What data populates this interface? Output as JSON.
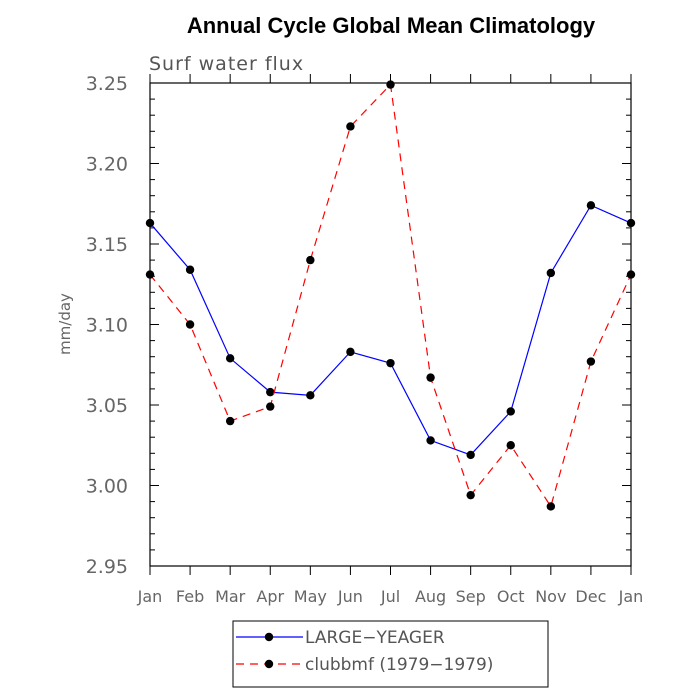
{
  "chart_data": {
    "type": "line",
    "title": "Annual Cycle Global Mean Climatology",
    "subtitle": "Surf water flux",
    "xlabel": "",
    "ylabel": "mm/day",
    "categories": [
      "Jan",
      "Feb",
      "Mar",
      "Apr",
      "May",
      "Jun",
      "Jul",
      "Aug",
      "Sep",
      "Oct",
      "Nov",
      "Dec",
      "Jan"
    ],
    "ylim": [
      2.95,
      3.25
    ],
    "yticks": [
      "2.95",
      "3.00",
      "3.05",
      "3.10",
      "3.15",
      "3.20",
      "3.25"
    ],
    "legend_position": "bottom-center",
    "series": [
      {
        "name": "LARGE−YEAGER",
        "color": "#0000ff",
        "dash": "solid",
        "values": [
          3.163,
          3.134,
          3.079,
          3.058,
          3.056,
          3.083,
          3.076,
          3.028,
          3.019,
          3.046,
          3.132,
          3.174,
          3.163
        ]
      },
      {
        "name": "clubbmf (1979−1979)",
        "color": "#ff0000",
        "dash": "dashed",
        "values": [
          3.131,
          3.1,
          3.04,
          3.049,
          3.14,
          3.223,
          3.249,
          3.067,
          2.994,
          3.025,
          2.987,
          3.077,
          3.131
        ]
      }
    ]
  }
}
